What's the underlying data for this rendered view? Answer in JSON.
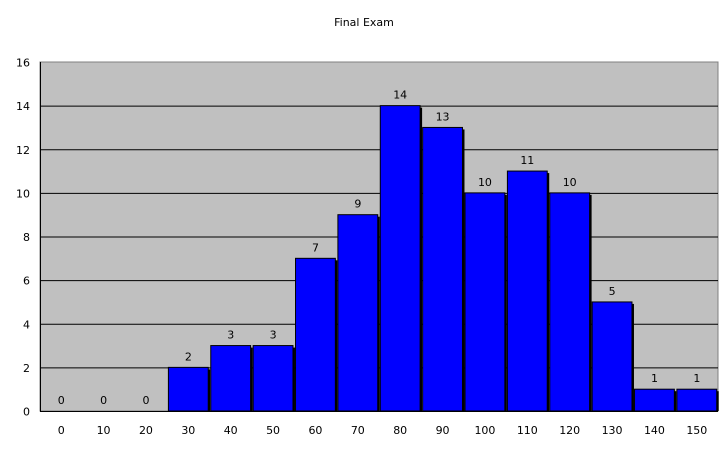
{
  "chart_data": {
    "type": "bar",
    "title": "Final Exam",
    "xlabel": "",
    "ylabel": "",
    "categories": [
      "0",
      "10",
      "20",
      "30",
      "40",
      "50",
      "60",
      "70",
      "80",
      "90",
      "100",
      "110",
      "120",
      "130",
      "140",
      "150"
    ],
    "values": [
      0,
      0,
      0,
      2,
      3,
      3,
      7,
      9,
      14,
      13,
      10,
      11,
      10,
      5,
      1,
      1
    ],
    "ylim": [
      0,
      16
    ],
    "yticks": [
      0,
      2,
      4,
      6,
      8,
      10,
      12,
      14,
      16
    ],
    "grid": true,
    "data_labels": true,
    "legend": "none",
    "colors": {
      "bar": "#0000ff",
      "plot_background": "#c0c0c0",
      "gridline": "#000000"
    }
  }
}
